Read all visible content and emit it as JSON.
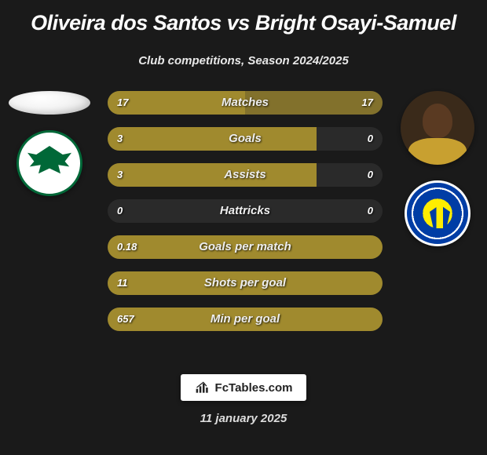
{
  "title": "Oliveira dos Santos vs Bright Osayi-Samuel",
  "subtitle": "Club competitions, Season 2024/2025",
  "left": {
    "player_name": "Oliveira dos Santos",
    "club": "Konyaspor"
  },
  "right": {
    "player_name": "Bright Osayi-Samuel",
    "club": "Fenerbahce"
  },
  "colors": {
    "bar_primary": "#a08a2e",
    "background": "#1a1a1a",
    "text": "#ffffff"
  },
  "stats": [
    {
      "label": "Matches",
      "left_val": "17",
      "right_val": "17",
      "left_pct": 50,
      "right_pct": 50
    },
    {
      "label": "Goals",
      "left_val": "3",
      "right_val": "0",
      "left_pct": 76,
      "right_pct": 0
    },
    {
      "label": "Assists",
      "left_val": "3",
      "right_val": "0",
      "left_pct": 76,
      "right_pct": 0
    },
    {
      "label": "Hattricks",
      "left_val": "0",
      "right_val": "0",
      "left_pct": 0,
      "right_pct": 0
    },
    {
      "label": "Goals per match",
      "left_val": "0.18",
      "right_val": "",
      "left_pct": 100,
      "right_pct": 0
    },
    {
      "label": "Shots per goal",
      "left_val": "11",
      "right_val": "",
      "left_pct": 100,
      "right_pct": 0
    },
    {
      "label": "Min per goal",
      "left_val": "657",
      "right_val": "",
      "left_pct": 100,
      "right_pct": 0
    }
  ],
  "footer": {
    "site": "FcTables.com",
    "date": "11 january 2025"
  }
}
